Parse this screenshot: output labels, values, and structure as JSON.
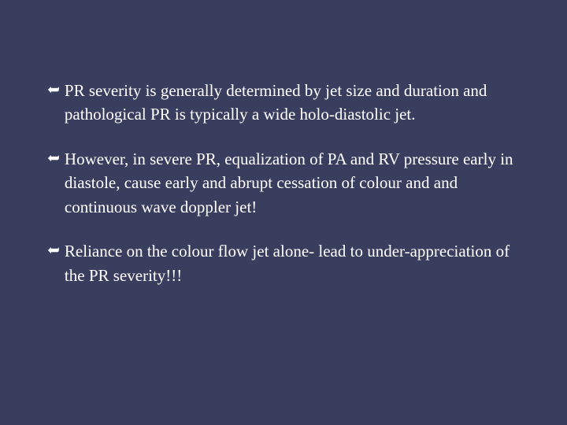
{
  "slide": {
    "background_color": "#3a3e5e",
    "text_color": "#ffffff",
    "font_family": "Georgia, 'Times New Roman', serif",
    "font_size_pt": 16,
    "line_height": 1.45,
    "bullet_marker_glyph": "➥",
    "bullets": [
      {
        "text": "PR severity is generally determined by jet size and duration and pathological PR is typically a wide holo-diastolic jet."
      },
      {
        "text": "However, in severe PR, equalization of PA and RV pressure  early in diastole, cause early and abrupt cessation of colour and and continuous wave doppler jet!"
      },
      {
        "text": "Reliance on the colour flow jet alone- lead to under-appreciation of the PR severity!!!"
      }
    ]
  }
}
